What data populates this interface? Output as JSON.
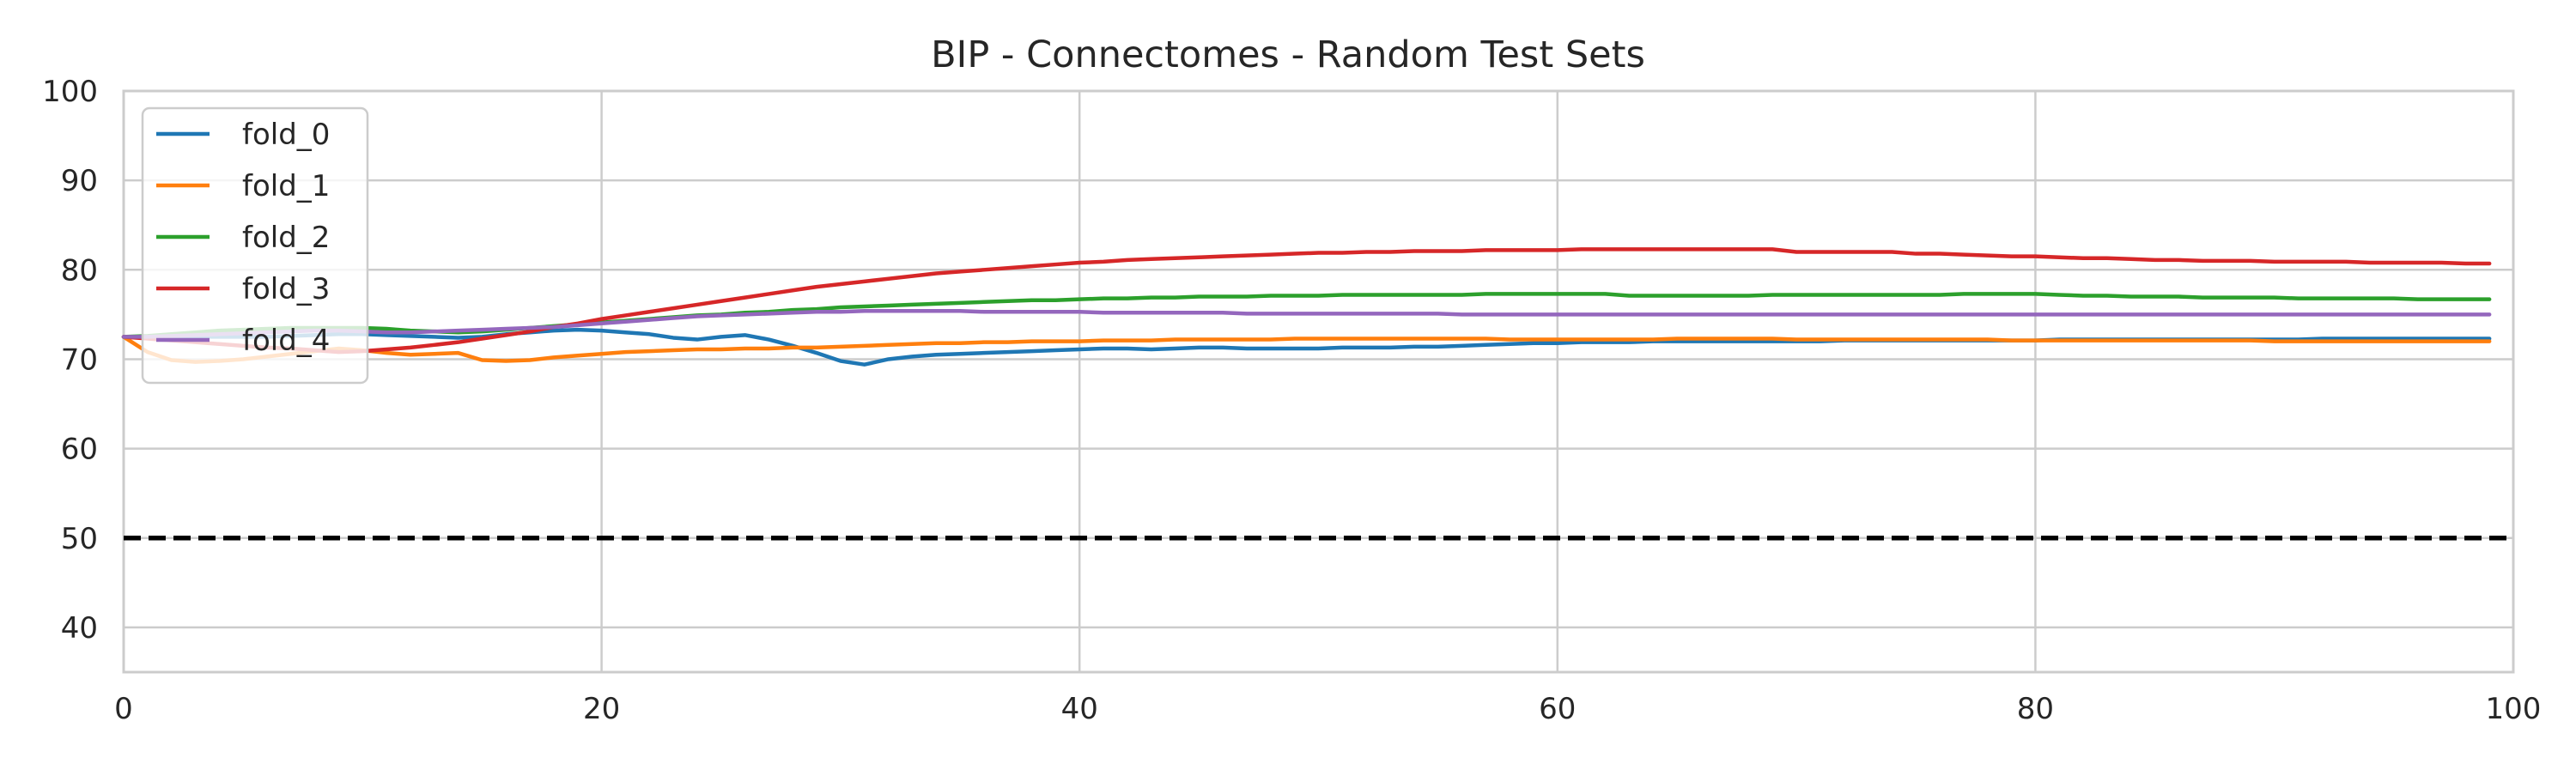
{
  "chart_data": {
    "type": "line",
    "title": "BIP - Connectomes - Random Test Sets",
    "xlabel": "",
    "ylabel": "",
    "xlim": [
      0,
      100
    ],
    "ylim": [
      35,
      100
    ],
    "xticks": [
      0,
      20,
      40,
      60,
      80,
      100
    ],
    "yticks": [
      40,
      50,
      60,
      70,
      80,
      90,
      100
    ],
    "grid": true,
    "legend_position": "top-left",
    "reference_line": {
      "y": 50,
      "color": "#000000",
      "style": "dashed"
    },
    "x_range": {
      "start": 0,
      "end": 99,
      "step": 1
    },
    "series": [
      {
        "name": "fold_0",
        "color": "#1f77b4",
        "values": [
          72.5,
          72.5,
          72.5,
          72.5,
          72.5,
          72.5,
          72.5,
          72.6,
          72.7,
          72.8,
          72.8,
          72.7,
          72.6,
          72.5,
          72.4,
          72.5,
          72.8,
          73.0,
          73.2,
          73.3,
          73.2,
          73.0,
          72.8,
          72.4,
          72.2,
          72.5,
          72.7,
          72.2,
          71.5,
          70.7,
          69.8,
          69.4,
          70.0,
          70.3,
          70.5,
          70.6,
          70.7,
          70.8,
          70.9,
          71.0,
          71.1,
          71.2,
          71.2,
          71.1,
          71.2,
          71.3,
          71.3,
          71.2,
          71.2,
          71.2,
          71.2,
          71.3,
          71.3,
          71.3,
          71.4,
          71.4,
          71.5,
          71.6,
          71.7,
          71.8,
          71.8,
          71.9,
          71.9,
          71.9,
          72.0,
          72.0,
          72.0,
          72.0,
          72.0,
          72.0,
          72.0,
          72.0,
          72.1,
          72.1,
          72.1,
          72.1,
          72.1,
          72.1,
          72.1,
          72.1,
          72.1,
          72.2,
          72.2,
          72.2,
          72.2,
          72.2,
          72.2,
          72.2,
          72.2,
          72.2,
          72.2,
          72.2,
          72.3,
          72.3,
          72.3,
          72.3,
          72.3,
          72.3,
          72.3,
          72.3
        ]
      },
      {
        "name": "fold_1",
        "color": "#ff7f0e",
        "values": [
          72.5,
          70.8,
          69.9,
          69.7,
          69.8,
          70.0,
          70.3,
          70.6,
          70.9,
          71.2,
          71.0,
          70.7,
          70.5,
          70.6,
          70.7,
          69.9,
          69.8,
          69.9,
          70.2,
          70.4,
          70.6,
          70.8,
          70.9,
          71.0,
          71.1,
          71.1,
          71.2,
          71.2,
          71.3,
          71.3,
          71.4,
          71.5,
          71.6,
          71.7,
          71.8,
          71.8,
          71.9,
          71.9,
          72.0,
          72.0,
          72.0,
          72.1,
          72.1,
          72.1,
          72.2,
          72.2,
          72.2,
          72.2,
          72.2,
          72.3,
          72.3,
          72.3,
          72.3,
          72.3,
          72.3,
          72.3,
          72.3,
          72.3,
          72.2,
          72.2,
          72.2,
          72.2,
          72.2,
          72.2,
          72.2,
          72.3,
          72.3,
          72.3,
          72.3,
          72.3,
          72.2,
          72.2,
          72.2,
          72.2,
          72.2,
          72.2,
          72.2,
          72.2,
          72.2,
          72.1,
          72.1,
          72.1,
          72.1,
          72.1,
          72.1,
          72.1,
          72.1,
          72.1,
          72.1,
          72.1,
          72.0,
          72.0,
          72.0,
          72.0,
          72.0,
          72.0,
          72.0,
          72.0,
          72.0,
          72.0
        ]
      },
      {
        "name": "fold_2",
        "color": "#2ca02c",
        "values": [
          72.5,
          72.6,
          72.8,
          73.0,
          73.2,
          73.3,
          73.4,
          73.5,
          73.5,
          73.5,
          73.5,
          73.4,
          73.2,
          73.1,
          73.0,
          73.1,
          73.3,
          73.5,
          73.7,
          73.9,
          74.1,
          74.3,
          74.5,
          74.7,
          74.9,
          75.0,
          75.2,
          75.3,
          75.5,
          75.6,
          75.8,
          75.9,
          76.0,
          76.1,
          76.2,
          76.3,
          76.4,
          76.5,
          76.6,
          76.6,
          76.7,
          76.8,
          76.8,
          76.9,
          76.9,
          77.0,
          77.0,
          77.0,
          77.1,
          77.1,
          77.1,
          77.2,
          77.2,
          77.2,
          77.2,
          77.2,
          77.2,
          77.3,
          77.3,
          77.3,
          77.3,
          77.3,
          77.3,
          77.1,
          77.1,
          77.1,
          77.1,
          77.1,
          77.1,
          77.2,
          77.2,
          77.2,
          77.2,
          77.2,
          77.2,
          77.2,
          77.2,
          77.3,
          77.3,
          77.3,
          77.3,
          77.2,
          77.1,
          77.1,
          77.0,
          77.0,
          77.0,
          76.9,
          76.9,
          76.9,
          76.9,
          76.8,
          76.8,
          76.8,
          76.8,
          76.8,
          76.7,
          76.7,
          76.7,
          76.7
        ]
      },
      {
        "name": "fold_3",
        "color": "#d62728",
        "values": [
          72.5,
          72.3,
          72.1,
          71.9,
          71.7,
          71.5,
          71.3,
          71.2,
          71.0,
          70.8,
          70.9,
          71.1,
          71.3,
          71.6,
          71.9,
          72.3,
          72.7,
          73.1,
          73.6,
          74.0,
          74.5,
          74.9,
          75.3,
          75.7,
          76.1,
          76.5,
          76.9,
          77.3,
          77.7,
          78.1,
          78.4,
          78.7,
          79.0,
          79.3,
          79.6,
          79.8,
          80.0,
          80.2,
          80.4,
          80.6,
          80.8,
          80.9,
          81.1,
          81.2,
          81.3,
          81.4,
          81.5,
          81.6,
          81.7,
          81.8,
          81.9,
          81.9,
          82.0,
          82.0,
          82.1,
          82.1,
          82.1,
          82.2,
          82.2,
          82.2,
          82.2,
          82.3,
          82.3,
          82.3,
          82.3,
          82.3,
          82.3,
          82.3,
          82.3,
          82.3,
          82.0,
          82.0,
          82.0,
          82.0,
          82.0,
          81.8,
          81.8,
          81.7,
          81.6,
          81.5,
          81.5,
          81.4,
          81.3,
          81.3,
          81.2,
          81.1,
          81.1,
          81.0,
          81.0,
          81.0,
          80.9,
          80.9,
          80.9,
          80.9,
          80.8,
          80.8,
          80.8,
          80.8,
          80.7,
          80.7
        ]
      },
      {
        "name": "fold_4",
        "color": "#9467bd",
        "values": [
          72.5,
          72.5,
          72.6,
          72.7,
          72.8,
          72.9,
          73.0,
          73.1,
          73.2,
          73.2,
          73.1,
          73.0,
          73.0,
          73.1,
          73.2,
          73.3,
          73.4,
          73.5,
          73.6,
          73.8,
          74.0,
          74.2,
          74.4,
          74.6,
          74.8,
          74.9,
          75.0,
          75.1,
          75.2,
          75.3,
          75.3,
          75.4,
          75.4,
          75.4,
          75.4,
          75.4,
          75.3,
          75.3,
          75.3,
          75.3,
          75.3,
          75.2,
          75.2,
          75.2,
          75.2,
          75.2,
          75.2,
          75.1,
          75.1,
          75.1,
          75.1,
          75.1,
          75.1,
          75.1,
          75.1,
          75.1,
          75.0,
          75.0,
          75.0,
          75.0,
          75.0,
          75.0,
          75.0,
          75.0,
          75.0,
          75.0,
          75.0,
          75.0,
          75.0,
          75.0,
          75.0,
          75.0,
          75.0,
          75.0,
          75.0,
          75.0,
          75.0,
          75.0,
          75.0,
          75.0,
          75.0,
          75.0,
          75.0,
          75.0,
          75.0,
          75.0,
          75.0,
          75.0,
          75.0,
          75.0,
          75.0,
          75.0,
          75.0,
          75.0,
          75.0,
          75.0,
          75.0,
          75.0,
          75.0,
          75.0
        ]
      }
    ]
  },
  "colors": {
    "grid": "#cccccc",
    "axes_edge": "#cccccc",
    "legend_edge": "#cccccc",
    "text": "#262626"
  }
}
